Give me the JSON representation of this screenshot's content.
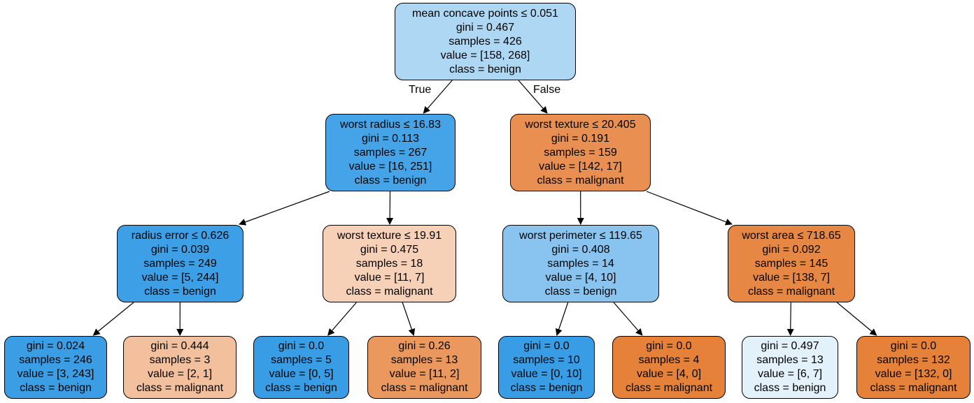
{
  "colors": {
    "benign_strong": "#399de5",
    "malignant_strong": "#e58139"
  },
  "edge_labels": {
    "true_label": "True",
    "false_label": "False"
  },
  "nodes": [
    {
      "id": "n0",
      "lines": [
        "mean concave points ≤ 0.051",
        "gini = 0.467",
        "samples = 426",
        "value = [158, 268]",
        "class = benign"
      ],
      "fill": "#aed7f4"
    },
    {
      "id": "n1",
      "lines": [
        "worst radius ≤ 16.83",
        "gini = 0.113",
        "samples = 267",
        "value = [16, 251]",
        "class = benign"
      ],
      "fill": "#45a3e7"
    },
    {
      "id": "n2",
      "lines": [
        "worst texture ≤ 20.405",
        "gini = 0.191",
        "samples = 159",
        "value = [142, 17]",
        "class = malignant"
      ],
      "fill": "#e88f51"
    },
    {
      "id": "n3",
      "lines": [
        "radius error ≤ 0.626",
        "gini = 0.039",
        "samples = 249",
        "value = [5, 244]",
        "class = benign"
      ],
      "fill": "#3d9fe6"
    },
    {
      "id": "n4",
      "lines": [
        "worst texture ≤ 19.91",
        "gini = 0.475",
        "samples = 18",
        "value = [11, 7]",
        "class = malignant"
      ],
      "fill": "#f6d1b7"
    },
    {
      "id": "n5",
      "lines": [
        "worst perimeter ≤ 119.65",
        "gini = 0.408",
        "samples = 14",
        "value = [4, 10]",
        "class = benign"
      ],
      "fill": "#88c4ef"
    },
    {
      "id": "n6",
      "lines": [
        "worst area ≤ 718.65",
        "gini = 0.092",
        "samples = 145",
        "value = [138, 7]",
        "class = malignant"
      ],
      "fill": "#e68743"
    },
    {
      "id": "n7",
      "lines": [
        "gini = 0.024",
        "samples = 246",
        "value = [3, 243]",
        "class = benign"
      ],
      "fill": "#3b9ee5"
    },
    {
      "id": "n8",
      "lines": [
        "gini = 0.444",
        "samples = 3",
        "value = [2, 1]",
        "class = malignant"
      ],
      "fill": "#f2c09c"
    },
    {
      "id": "n9",
      "lines": [
        "gini = 0.0",
        "samples = 5",
        "value = [0, 5]",
        "class = benign"
      ],
      "fill": "#399de5"
    },
    {
      "id": "n10",
      "lines": [
        "gini = 0.26",
        "samples = 13",
        "value = [11, 2]",
        "class = malignant"
      ],
      "fill": "#ea985d"
    },
    {
      "id": "n11",
      "lines": [
        "gini = 0.0",
        "samples = 10",
        "value = [0, 10]",
        "class = benign"
      ],
      "fill": "#399de5"
    },
    {
      "id": "n12",
      "lines": [
        "gini = 0.0",
        "samples = 4",
        "value = [4, 0]",
        "class = malignant"
      ],
      "fill": "#e58139"
    },
    {
      "id": "n13",
      "lines": [
        "gini = 0.497",
        "samples = 13",
        "value = [6, 7]",
        "class = benign"
      ],
      "fill": "#e3f1fb"
    },
    {
      "id": "n14",
      "lines": [
        "gini = 0.0",
        "samples = 132",
        "value = [132, 0]",
        "class = malignant"
      ],
      "fill": "#e58139"
    }
  ],
  "edges": [
    {
      "from": "n0",
      "to": "n1"
    },
    {
      "from": "n0",
      "to": "n2"
    },
    {
      "from": "n1",
      "to": "n3"
    },
    {
      "from": "n1",
      "to": "n4"
    },
    {
      "from": "n2",
      "to": "n5"
    },
    {
      "from": "n2",
      "to": "n6"
    },
    {
      "from": "n3",
      "to": "n7"
    },
    {
      "from": "n3",
      "to": "n8"
    },
    {
      "from": "n4",
      "to": "n9"
    },
    {
      "from": "n4",
      "to": "n10"
    },
    {
      "from": "n5",
      "to": "n11"
    },
    {
      "from": "n5",
      "to": "n12"
    },
    {
      "from": "n6",
      "to": "n13"
    },
    {
      "from": "n6",
      "to": "n14"
    }
  ]
}
